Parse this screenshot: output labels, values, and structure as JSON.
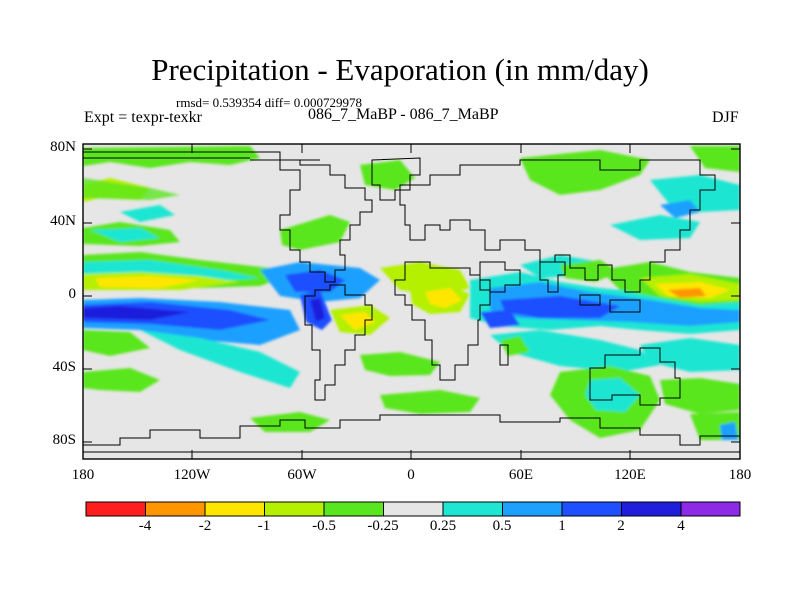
{
  "title": "Precipitation - Evaporation (in mm/day)",
  "stats": "rmsd= 0.539354 diff= 0.000729978",
  "experiment": "Expt = texpr-texkr",
  "comparison": "086_7_MaBP - 086_7_MaBP",
  "season": "DJF",
  "lat_labels": [
    "80N",
    "40N",
    "0",
    "40S",
    "80S"
  ],
  "lon_labels": [
    "180",
    "120W",
    "60W",
    "0",
    "60E",
    "120E",
    "180"
  ],
  "colorbar": {
    "labels": [
      "-4",
      "-2",
      "-1",
      "-0.5",
      "-0.25",
      "0.25",
      "0.5",
      "1",
      "2",
      "4"
    ],
    "colors": [
      "#ff1e1e",
      "#ff9600",
      "#ffe600",
      "#b4f000",
      "#5ae61e",
      "#e6e6e6",
      "#1ee6d2",
      "#1ea0ff",
      "#1e50ff",
      "#1e1edc",
      "#8c2ae6"
    ]
  }
}
